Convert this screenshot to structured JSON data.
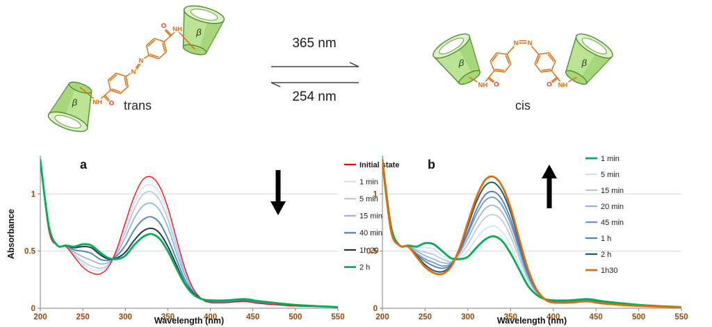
{
  "scheme": {
    "forward_wavelength": "365 nm",
    "reverse_wavelength": "254 nm",
    "trans_label": "trans",
    "cis_label": "cis",
    "beta_label": "β",
    "atom_labels": {
      "n": "N",
      "nh": "NH",
      "o": "O"
    },
    "colors": {
      "linker": "#E36C0A",
      "cone_fill": "#BCE394",
      "cone_stroke": "#4F9132",
      "oxygen": "#FF2A00"
    }
  },
  "chart_data": [
    {
      "id": "a",
      "type": "line",
      "panel_label": "a",
      "xlabel": "Wavelength (nm)",
      "ylabel": "Absorbance",
      "xlim": [
        200,
        550
      ],
      "ylim": [
        0,
        1.3
      ],
      "xticks": [
        200,
        250,
        300,
        350,
        400,
        450,
        500,
        550
      ],
      "yticks": [
        0,
        0.5,
        1
      ],
      "grid": true,
      "legend_position": "right",
      "trend_arrow": "down",
      "tick_label_color": "#974806",
      "grid_color": "#D9D9D9",
      "axis_color": "#808080",
      "x": [
        200,
        210,
        220,
        230,
        240,
        250,
        260,
        270,
        280,
        290,
        300,
        310,
        320,
        330,
        340,
        350,
        360,
        370,
        380,
        390,
        400,
        420,
        440,
        460,
        500,
        550
      ],
      "series": [
        {
          "name": "Initial state",
          "color": "#FF0000",
          "width": 1.3,
          "bold_label": true,
          "values": [
            1.28,
            0.68,
            0.55,
            0.54,
            0.45,
            0.36,
            0.31,
            0.3,
            0.36,
            0.52,
            0.75,
            0.97,
            1.12,
            1.15,
            1.07,
            0.88,
            0.61,
            0.35,
            0.17,
            0.08,
            0.05,
            0.05,
            0.06,
            0.04,
            0.02,
            0.01
          ]
        },
        {
          "name": "1 min",
          "color": "#D3E0F1",
          "width": 1.5,
          "values": [
            1.28,
            0.69,
            0.55,
            0.54,
            0.46,
            0.39,
            0.34,
            0.33,
            0.37,
            0.51,
            0.71,
            0.91,
            1.05,
            1.08,
            1.01,
            0.83,
            0.57,
            0.33,
            0.16,
            0.08,
            0.05,
            0.05,
            0.06,
            0.04,
            0.02,
            0.01
          ]
        },
        {
          "name": "5 min",
          "color": "#B0C7E8",
          "width": 1.6,
          "values": [
            1.29,
            0.69,
            0.55,
            0.54,
            0.47,
            0.41,
            0.37,
            0.35,
            0.38,
            0.5,
            0.67,
            0.86,
            0.99,
            1.02,
            0.95,
            0.78,
            0.54,
            0.31,
            0.16,
            0.08,
            0.06,
            0.06,
            0.07,
            0.05,
            0.02,
            0.01
          ]
        },
        {
          "name": "15 min",
          "color": "#8EB4E3",
          "width": 1.7,
          "values": [
            1.29,
            0.7,
            0.55,
            0.54,
            0.49,
            0.45,
            0.42,
            0.39,
            0.4,
            0.48,
            0.62,
            0.78,
            0.89,
            0.92,
            0.86,
            0.71,
            0.49,
            0.29,
            0.15,
            0.08,
            0.06,
            0.06,
            0.07,
            0.05,
            0.02,
            0.01
          ]
        },
        {
          "name": "40 min",
          "color": "#4F81BD",
          "width": 1.9,
          "values": [
            1.29,
            0.71,
            0.55,
            0.55,
            0.51,
            0.5,
            0.48,
            0.43,
            0.42,
            0.46,
            0.55,
            0.68,
            0.77,
            0.8,
            0.75,
            0.61,
            0.43,
            0.25,
            0.14,
            0.08,
            0.06,
            0.06,
            0.07,
            0.05,
            0.03,
            0.01
          ]
        },
        {
          "name": "1h 20",
          "color": "#17375D",
          "width": 2.0,
          "values": [
            1.3,
            0.72,
            0.55,
            0.55,
            0.53,
            0.54,
            0.53,
            0.47,
            0.43,
            0.44,
            0.49,
            0.59,
            0.67,
            0.7,
            0.66,
            0.54,
            0.38,
            0.22,
            0.13,
            0.08,
            0.07,
            0.07,
            0.08,
            0.06,
            0.03,
            0.01
          ]
        },
        {
          "name": "2 h",
          "color": "#00B050",
          "width": 2.8,
          "values": [
            1.3,
            0.72,
            0.55,
            0.55,
            0.54,
            0.56,
            0.55,
            0.49,
            0.44,
            0.43,
            0.46,
            0.55,
            0.62,
            0.65,
            0.61,
            0.5,
            0.35,
            0.21,
            0.12,
            0.08,
            0.07,
            0.07,
            0.08,
            0.06,
            0.03,
            0.01
          ]
        }
      ],
      "draw_order": [
        1,
        2,
        3,
        4,
        5,
        0,
        6
      ]
    },
    {
      "id": "b",
      "type": "line",
      "panel_label": "b",
      "xlabel": "Wavelength (nm)",
      "ylabel": "",
      "xlim": [
        200,
        550
      ],
      "ylim": [
        0,
        1.3
      ],
      "xticks": [
        200,
        250,
        300,
        350,
        400,
        450,
        500,
        550
      ],
      "yticks": [
        0,
        0.5,
        1
      ],
      "grid": true,
      "legend_position": "inside-right",
      "trend_arrow": "up",
      "tick_label_color": "#974806",
      "grid_color": "#D9D9D9",
      "axis_color": "#808080",
      "x": [
        200,
        210,
        220,
        230,
        240,
        250,
        260,
        270,
        280,
        290,
        300,
        310,
        320,
        330,
        340,
        350,
        360,
        370,
        380,
        390,
        400,
        420,
        440,
        460,
        500,
        550
      ],
      "series": [
        {
          "name": "1 min",
          "color": "#00B050",
          "width": 2.8,
          "values": [
            1.3,
            0.72,
            0.55,
            0.55,
            0.54,
            0.57,
            0.56,
            0.5,
            0.44,
            0.43,
            0.45,
            0.53,
            0.6,
            0.63,
            0.59,
            0.48,
            0.34,
            0.2,
            0.12,
            0.08,
            0.07,
            0.07,
            0.08,
            0.06,
            0.03,
            0.01
          ]
        },
        {
          "name": "5 min",
          "color": "#CFE0F3",
          "width": 1.5,
          "values": [
            1.3,
            0.71,
            0.55,
            0.55,
            0.53,
            0.53,
            0.52,
            0.46,
            0.43,
            0.44,
            0.5,
            0.61,
            0.69,
            0.72,
            0.67,
            0.55,
            0.39,
            0.23,
            0.13,
            0.08,
            0.07,
            0.07,
            0.08,
            0.06,
            0.03,
            0.01
          ]
        },
        {
          "name": "15 min",
          "color": "#B0C7E8",
          "width": 1.6,
          "values": [
            1.29,
            0.71,
            0.55,
            0.55,
            0.51,
            0.49,
            0.47,
            0.43,
            0.41,
            0.46,
            0.56,
            0.69,
            0.79,
            0.82,
            0.77,
            0.63,
            0.44,
            0.26,
            0.14,
            0.08,
            0.06,
            0.06,
            0.07,
            0.05,
            0.03,
            0.01
          ]
        },
        {
          "name": "20 min",
          "color": "#95B3D7",
          "width": 1.7,
          "values": [
            1.29,
            0.7,
            0.55,
            0.55,
            0.5,
            0.46,
            0.43,
            0.4,
            0.4,
            0.48,
            0.61,
            0.76,
            0.87,
            0.9,
            0.84,
            0.69,
            0.48,
            0.28,
            0.15,
            0.08,
            0.06,
            0.06,
            0.07,
            0.05,
            0.03,
            0.01
          ]
        },
        {
          "name": "45 min",
          "color": "#6D93C8",
          "width": 1.8,
          "values": [
            1.29,
            0.69,
            0.55,
            0.54,
            0.48,
            0.43,
            0.4,
            0.37,
            0.39,
            0.49,
            0.65,
            0.82,
            0.94,
            0.97,
            0.9,
            0.74,
            0.52,
            0.3,
            0.15,
            0.08,
            0.06,
            0.06,
            0.07,
            0.05,
            0.02,
            0.01
          ]
        },
        {
          "name": "1 h",
          "color": "#4F81BD",
          "width": 1.9,
          "values": [
            1.29,
            0.69,
            0.55,
            0.54,
            0.47,
            0.41,
            0.37,
            0.35,
            0.38,
            0.5,
            0.67,
            0.86,
            0.99,
            1.02,
            0.95,
            0.78,
            0.54,
            0.31,
            0.16,
            0.08,
            0.06,
            0.06,
            0.07,
            0.05,
            0.02,
            0.01
          ]
        },
        {
          "name": "2 h",
          "color": "#215968",
          "width": 2.0,
          "values": [
            1.28,
            0.68,
            0.55,
            0.54,
            0.46,
            0.38,
            0.33,
            0.32,
            0.37,
            0.51,
            0.72,
            0.93,
            1.07,
            1.1,
            1.02,
            0.84,
            0.58,
            0.34,
            0.17,
            0.08,
            0.05,
            0.05,
            0.06,
            0.04,
            0.02,
            0.01
          ]
        },
        {
          "name": "1h30",
          "color": "#E36C0A",
          "width": 2.8,
          "values": [
            1.28,
            0.68,
            0.55,
            0.54,
            0.45,
            0.36,
            0.31,
            0.3,
            0.36,
            0.52,
            0.75,
            0.97,
            1.12,
            1.15,
            1.07,
            0.88,
            0.61,
            0.35,
            0.17,
            0.08,
            0.05,
            0.05,
            0.06,
            0.04,
            0.02,
            0.01
          ]
        }
      ],
      "draw_order": [
        1,
        2,
        3,
        4,
        5,
        6,
        0,
        7
      ]
    }
  ]
}
